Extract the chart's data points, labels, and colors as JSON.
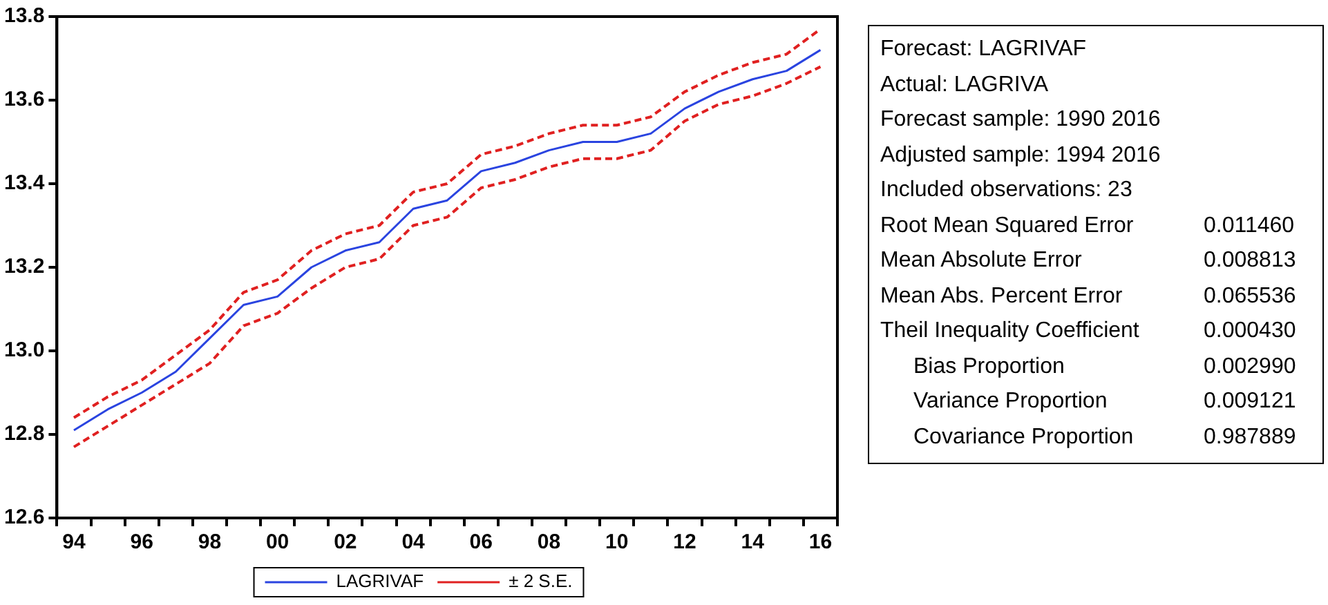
{
  "chart_data": {
    "type": "line",
    "categories": [
      "94",
      null,
      "96",
      null,
      "98",
      null,
      "00",
      null,
      "02",
      null,
      "04",
      null,
      "06",
      null,
      "08",
      null,
      "10",
      null,
      "12",
      null,
      "14",
      null,
      "16"
    ],
    "series": [
      {
        "name": "LAGRIVAF",
        "color": "#2a44e0",
        "line_style": "solid",
        "values": [
          12.81,
          12.86,
          12.9,
          12.95,
          13.03,
          13.11,
          13.13,
          13.2,
          13.24,
          13.26,
          13.34,
          13.36,
          13.43,
          13.45,
          13.48,
          13.5,
          13.5,
          13.52,
          13.58,
          13.62,
          13.65,
          13.67,
          13.72
        ]
      },
      {
        "name": "± 2 S.E.",
        "color": "#e02020",
        "line_style": "dashed",
        "values": [
          12.84,
          12.89,
          12.93,
          12.99,
          13.05,
          13.14,
          13.17,
          13.24,
          13.28,
          13.3,
          13.38,
          13.4,
          13.47,
          13.49,
          13.52,
          13.54,
          13.54,
          13.56,
          13.62,
          13.66,
          13.69,
          13.71,
          13.77
        ]
      },
      {
        "color": "#e02020",
        "line_style": "dashed",
        "values": [
          12.77,
          12.82,
          12.87,
          12.92,
          12.97,
          13.06,
          13.09,
          13.15,
          13.2,
          13.22,
          13.3,
          13.32,
          13.39,
          13.41,
          13.44,
          13.46,
          13.46,
          13.48,
          13.55,
          13.59,
          13.61,
          13.64,
          13.68
        ]
      }
    ],
    "ylim": [
      12.6,
      13.8
    ],
    "yticks": [
      12.6,
      12.8,
      {
        "value": 13.0,
        "label": "13.0"
      },
      13.2,
      13.4,
      13.6,
      13.8
    ],
    "grid": false,
    "legend": "bottom",
    "marker": "none",
    "annotations": [
      "Forecast: LAGRIVAF",
      "Actual: LAGRIVA",
      "Forecast sample: 1990 2016",
      "Adjusted sample: 1994 2016",
      "Included observations: 23",
      "Root Mean Squared Error",
      "0.011460",
      "Mean Absolute Error",
      "0.008813",
      "Mean Abs. Percent Error",
      "0.065536",
      "Theil Inequality Coefficient",
      "0.000430",
      "Bias Proportion",
      "0.002990",
      "Variance Proportion",
      "0.009121",
      "Covariance Proportion",
      "0.987889"
    ]
  }
}
